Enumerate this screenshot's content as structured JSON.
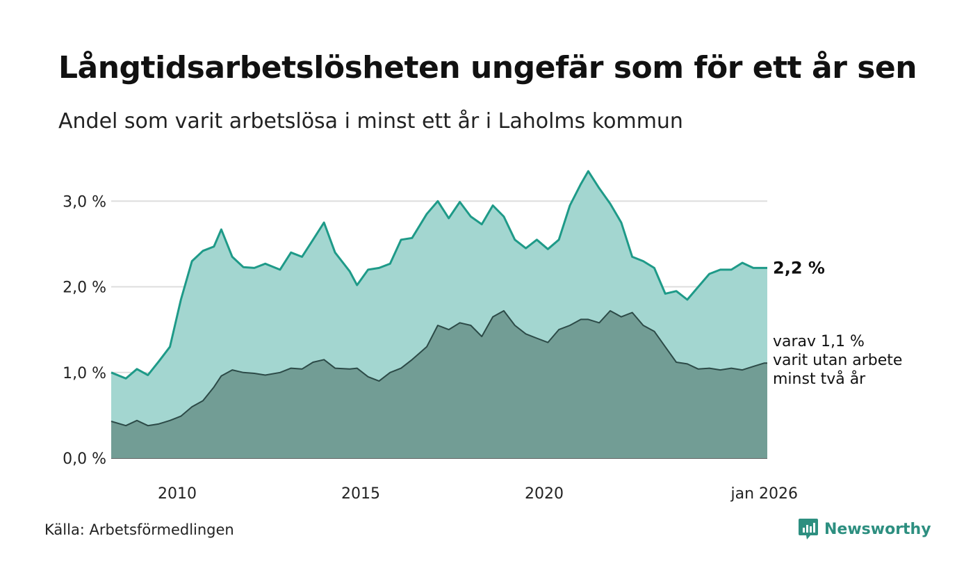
{
  "title": "Långtidsarbetslösheten ungefär som för ett år sen",
  "subtitle": "Andel som varit arbetslösa i minst ett år i Laholms kommun",
  "source": "Källa: Arbetsförmedlingen",
  "brand": "Newsworthy",
  "colors": {
    "main_line": "#1e9a88",
    "main_fill": "#a3d6d0",
    "sub_line": "#2c4a47",
    "sub_fill": "#729d95",
    "grid": "#dddddd",
    "axis": "#333333",
    "brand": "#2d8f80"
  },
  "chart_data": {
    "type": "area",
    "title": "Långtidsarbetslösheten ungefär som för ett år sen",
    "subtitle": "Andel som varit arbetslösa i minst ett år i Laholms kommun",
    "x_unit": "year (decimal)",
    "xlim": [
      2008.2,
      2026.08
    ],
    "ylim": [
      0,
      3.4
    ],
    "yticks": [
      0,
      1,
      2,
      3
    ],
    "ytick_labels": [
      "0,0 %",
      "1,0 %",
      "2,0 %",
      "3,0 %"
    ],
    "xtick_values": [
      2010,
      2015,
      2020,
      2026.0
    ],
    "xtick_labels": [
      "2010",
      "2015",
      "2020",
      "jan 2026"
    ],
    "grid": true,
    "series": [
      {
        "name": "Minst ett år",
        "end_label": "2,2 %",
        "x": [
          2008.2,
          2008.6,
          2008.9,
          2009.2,
          2009.5,
          2009.8,
          2010.1,
          2010.4,
          2010.7,
          2011.0,
          2011.2,
          2011.5,
          2011.8,
          2012.1,
          2012.4,
          2012.8,
          2013.1,
          2013.4,
          2013.7,
          2014.0,
          2014.3,
          2014.7,
          2014.9,
          2015.2,
          2015.5,
          2015.8,
          2016.1,
          2016.4,
          2016.8,
          2017.1,
          2017.4,
          2017.7,
          2018.0,
          2018.3,
          2018.6,
          2018.9,
          2019.2,
          2019.5,
          2019.8,
          2020.1,
          2020.4,
          2020.7,
          2021.0,
          2021.2,
          2021.5,
          2021.8,
          2022.1,
          2022.4,
          2022.7,
          2023.0,
          2023.3,
          2023.6,
          2023.9,
          2024.2,
          2024.5,
          2024.8,
          2025.1,
          2025.4,
          2025.7,
          2026.0,
          2026.08
        ],
        "values": [
          1.0,
          0.93,
          1.04,
          0.97,
          1.13,
          1.3,
          1.85,
          2.3,
          2.42,
          2.47,
          2.67,
          2.35,
          2.23,
          2.22,
          2.27,
          2.2,
          2.4,
          2.35,
          2.55,
          2.75,
          2.4,
          2.18,
          2.02,
          2.2,
          2.22,
          2.27,
          2.55,
          2.57,
          2.85,
          3.0,
          2.8,
          2.99,
          2.82,
          2.73,
          2.95,
          2.82,
          2.55,
          2.45,
          2.55,
          2.44,
          2.55,
          2.95,
          3.2,
          3.35,
          3.15,
          2.97,
          2.75,
          2.35,
          2.3,
          2.22,
          1.92,
          1.95,
          1.85,
          2.0,
          2.15,
          2.2,
          2.2,
          2.28,
          2.22,
          2.22,
          2.22
        ]
      },
      {
        "name": "varav minst två år",
        "end_label": [
          "varav 1,1 %",
          "varit utan arbete",
          "minst två år"
        ],
        "x": [
          2008.2,
          2008.6,
          2008.9,
          2009.2,
          2009.5,
          2009.8,
          2010.1,
          2010.4,
          2010.7,
          2011.0,
          2011.2,
          2011.5,
          2011.8,
          2012.1,
          2012.4,
          2012.8,
          2013.1,
          2013.4,
          2013.7,
          2014.0,
          2014.3,
          2014.7,
          2014.9,
          2015.2,
          2015.5,
          2015.8,
          2016.1,
          2016.4,
          2016.8,
          2017.1,
          2017.4,
          2017.7,
          2018.0,
          2018.3,
          2018.6,
          2018.9,
          2019.2,
          2019.5,
          2019.8,
          2020.1,
          2020.4,
          2020.7,
          2021.0,
          2021.2,
          2021.5,
          2021.8,
          2022.1,
          2022.4,
          2022.7,
          2023.0,
          2023.3,
          2023.6,
          2023.9,
          2024.2,
          2024.5,
          2024.8,
          2025.1,
          2025.4,
          2025.7,
          2026.0,
          2026.08
        ],
        "values": [
          0.43,
          0.38,
          0.44,
          0.38,
          0.4,
          0.44,
          0.49,
          0.6,
          0.67,
          0.83,
          0.96,
          1.03,
          1.0,
          0.99,
          0.97,
          1.0,
          1.05,
          1.04,
          1.12,
          1.15,
          1.05,
          1.04,
          1.05,
          0.95,
          0.9,
          1.0,
          1.05,
          1.15,
          1.3,
          1.55,
          1.5,
          1.58,
          1.55,
          1.42,
          1.65,
          1.72,
          1.55,
          1.45,
          1.4,
          1.35,
          1.5,
          1.55,
          1.62,
          1.62,
          1.58,
          1.72,
          1.65,
          1.7,
          1.55,
          1.48,
          1.3,
          1.12,
          1.1,
          1.04,
          1.05,
          1.03,
          1.05,
          1.03,
          1.07,
          1.11,
          1.11
        ]
      }
    ]
  }
}
